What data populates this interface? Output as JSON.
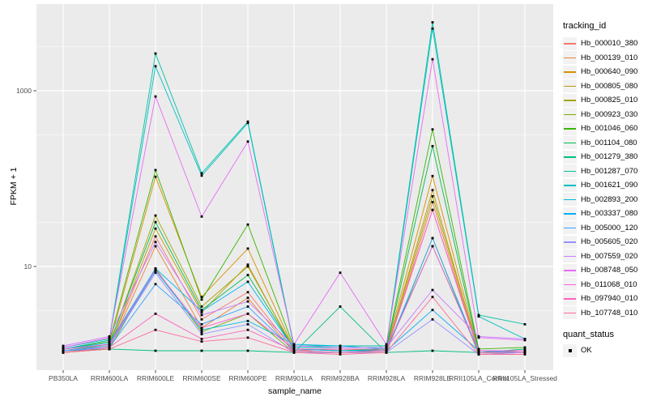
{
  "chart_data": {
    "type": "line",
    "title": "",
    "xlabel": "sample_name",
    "ylabel": "FPKM + 1",
    "y_scale": "log10",
    "y_ticks": [
      10,
      1000
    ],
    "y_tick_labels": [
      "10",
      "1000"
    ],
    "y_minor_ticks": [
      3.162,
      31.62,
      316.2,
      3162
    ],
    "ylim": [
      1,
      9500
    ],
    "grid": "on",
    "legend_position": "right",
    "point_shape": "square",
    "point_color": "#000000",
    "categories": [
      "PB350LA",
      "RRIM600LA",
      "RRIM600LE",
      "RRIM600SE",
      "RRIM600PE",
      "RRIM901LA",
      "RRIM928BA",
      "RRIM928LA",
      "RRIM928LE",
      "RRII105LA_Control",
      "RRII105LA_Stressed"
    ],
    "series": [
      {
        "name": "Hb_000010_380",
        "color": "#F8766D",
        "values": [
          1.1,
          1.2,
          22,
          2.5,
          5.1,
          1.1,
          1.15,
          1.1,
          44,
          1.05,
          1.1
        ]
      },
      {
        "name": "Hb_000139_010",
        "color": "#EA8331",
        "values": [
          1.05,
          1.15,
          17,
          2.0,
          4.4,
          1.05,
          1.05,
          1.05,
          54,
          1.05,
          1.05
        ]
      },
      {
        "name": "Hb_000640_090",
        "color": "#D89000",
        "values": [
          1.1,
          1.3,
          105,
          4.5,
          16,
          1.15,
          1.1,
          1.15,
          107,
          1.1,
          1.1
        ]
      },
      {
        "name": "Hb_000805_080",
        "color": "#C09B00",
        "values": [
          1.05,
          1.2,
          27,
          3.0,
          10.5,
          1.1,
          1.05,
          1.1,
          74,
          1.05,
          1.05
        ]
      },
      {
        "name": "Hb_000825_010",
        "color": "#A3A500",
        "values": [
          1.1,
          1.25,
          38,
          3.5,
          10.0,
          1.15,
          1.1,
          1.1,
          63,
          1.1,
          1.1
        ]
      },
      {
        "name": "Hb_000923_030",
        "color": "#7CAE00",
        "values": [
          1.05,
          1.15,
          9.5,
          1.8,
          2.9,
          1.05,
          1.05,
          1.05,
          21,
          1.0,
          1.05
        ]
      },
      {
        "name": "Hb_001046_060",
        "color": "#39B600",
        "values": [
          1.15,
          1.4,
          125,
          4.2,
          30,
          1.2,
          1.2,
          1.2,
          363,
          1.15,
          1.2
        ]
      },
      {
        "name": "Hb_001104_080",
        "color": "#00BB4E",
        "values": [
          1.1,
          1.3,
          32,
          3.2,
          8.0,
          1.15,
          1.1,
          1.15,
          234,
          1.1,
          1.1
        ]
      },
      {
        "name": "Hb_001279_380",
        "color": "#00BF7D",
        "values": [
          1.1,
          1.15,
          1.1,
          1.1,
          1.1,
          1.05,
          3.5,
          1.05,
          1.1,
          1.05,
          1.15
        ]
      },
      {
        "name": "Hb_001287_070",
        "color": "#00C1A3",
        "values": [
          1.2,
          1.5,
          2650,
          115,
          445,
          1.25,
          1.25,
          1.25,
          6000,
          2.8,
          2.2
        ]
      },
      {
        "name": "Hb_001621_090",
        "color": "#00BFC4",
        "values": [
          1.15,
          1.45,
          1900,
          108,
          430,
          1.2,
          1.2,
          1.2,
          5100,
          2.7,
          1.5
        ]
      },
      {
        "name": "Hb_002893_200",
        "color": "#00BAE0",
        "values": [
          1.1,
          1.25,
          9.0,
          1.9,
          2.4,
          1.3,
          1.25,
          1.15,
          17,
          1.1,
          1.1
        ]
      },
      {
        "name": "Hb_003337_080",
        "color": "#00B0F6",
        "values": [
          1.15,
          1.35,
          9.5,
          3.1,
          6.7,
          1.15,
          1.1,
          1.1,
          3.2,
          1.1,
          1.05
        ]
      },
      {
        "name": "Hb_005000_120",
        "color": "#35A2FF",
        "values": [
          1.1,
          1.2,
          6.3,
          2.2,
          3.5,
          1.1,
          1.05,
          1.1,
          21,
          1.05,
          1.05
        ]
      },
      {
        "name": "Hb_005605_020",
        "color": "#9590FF",
        "values": [
          1.1,
          1.25,
          8.5,
          1.7,
          2.2,
          1.05,
          1.05,
          1.05,
          2.5,
          1.0,
          1.05
        ]
      },
      {
        "name": "Hb_007559_020",
        "color": "#C77CFF",
        "values": [
          1.25,
          1.6,
          19,
          2.8,
          4.0,
          1.25,
          1.2,
          1.2,
          5.4,
          1.6,
          1.5
        ]
      },
      {
        "name": "Hb_008748_050",
        "color": "#E76BF3",
        "values": [
          1.2,
          1.55,
          860,
          37,
          264,
          1.3,
          8.5,
          1.3,
          2280,
          1.55,
          1.45
        ]
      },
      {
        "name": "Hb_011068_010",
        "color": "#FA62DB",
        "values": [
          1.15,
          1.3,
          9.2,
          2.0,
          2.9,
          1.15,
          1.15,
          1.15,
          44,
          1.1,
          1.1
        ]
      },
      {
        "name": "Hb_097940_010",
        "color": "#FF62BC",
        "values": [
          1.05,
          1.2,
          2.9,
          1.5,
          1.9,
          1.1,
          1.05,
          1.1,
          17,
          1.05,
          1.05
        ]
      },
      {
        "name": "Hb_107748_010",
        "color": "#FF6A98",
        "values": [
          1.05,
          1.15,
          1.9,
          1.4,
          1.55,
          1.05,
          1.0,
          1.05,
          4.5,
          1.0,
          1.0
        ]
      }
    ]
  },
  "legend": {
    "tracking_title": "tracking_id",
    "quant_title": "quant_status",
    "quant_value": "OK"
  },
  "colors": {
    "panel_bg": "#EBEBEB",
    "grid": "#FFFFFF",
    "key_bg": "#F2F2F2",
    "tick_text": "#4D4D4D",
    "tick_mark": "#333333",
    "point": "#000000"
  }
}
